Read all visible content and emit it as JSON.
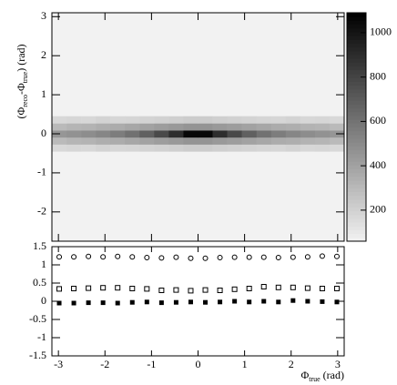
{
  "chart_data": [
    {
      "type": "heatmap",
      "y_label": [
        "(Φ",
        "reco",
        "-Φ",
        "true",
        ") (rad)"
      ],
      "x_edges": [
        -3.14,
        -2.826,
        -2.512,
        -2.198,
        -1.884,
        -1.57,
        -1.256,
        -0.942,
        -0.628,
        -0.314,
        0,
        0.314,
        0.628,
        0.942,
        1.256,
        1.57,
        1.884,
        2.198,
        2.512,
        2.826,
        3.14
      ],
      "y_edges": [
        -0.45,
        -0.27,
        -0.09,
        0.09,
        0.27,
        0.45
      ],
      "z": [
        [
          170,
          180,
          175,
          190,
          180,
          185,
          190,
          200,
          210,
          220,
          220,
          210,
          200,
          190,
          185,
          180,
          190,
          175,
          180,
          170
        ],
        [
          300,
          320,
          330,
          350,
          360,
          380,
          400,
          420,
          440,
          460,
          460,
          440,
          420,
          400,
          380,
          360,
          350,
          330,
          320,
          300
        ],
        [
          450,
          470,
          490,
          520,
          560,
          610,
          680,
          780,
          900,
          1060,
          1060,
          900,
          780,
          680,
          610,
          560,
          520,
          490,
          470,
          450
        ],
        [
          300,
          320,
          330,
          350,
          360,
          380,
          400,
          420,
          440,
          460,
          460,
          440,
          420,
          400,
          380,
          360,
          350,
          330,
          320,
          300
        ],
        [
          170,
          180,
          175,
          190,
          180,
          185,
          190,
          200,
          210,
          220,
          220,
          210,
          200,
          190,
          185,
          180,
          190,
          175,
          180,
          170
        ]
      ],
      "xlim": [
        -3.14,
        3.14
      ],
      "xticks": [
        -3,
        -2,
        -1,
        0,
        1,
        2,
        3
      ],
      "ylim": [
        -2.75,
        3.1
      ],
      "yticks": [
        -2,
        -1,
        0,
        1,
        2,
        3
      ],
      "zlim": [
        60,
        1090
      ],
      "zticks": [
        200,
        400,
        600,
        800,
        1000
      ],
      "colormap": "grayscale"
    },
    {
      "type": "scatter",
      "x_label": [
        "Φ",
        "true",
        " (rad)"
      ],
      "x": [
        -2.983,
        -2.669,
        -2.355,
        -2.041,
        -1.727,
        -1.413,
        -1.099,
        -0.785,
        -0.471,
        -0.157,
        0.157,
        0.471,
        0.785,
        1.099,
        1.413,
        1.727,
        2.041,
        2.355,
        2.669,
        2.983
      ],
      "series": [
        {
          "marker": "circle-open",
          "color": "#000000",
          "values": [
            1.22,
            1.22,
            1.23,
            1.22,
            1.23,
            1.22,
            1.2,
            1.19,
            1.21,
            1.18,
            1.18,
            1.2,
            1.21,
            1.21,
            1.21,
            1.2,
            1.21,
            1.22,
            1.24,
            1.23
          ]
        },
        {
          "marker": "square-open",
          "color": "#000000",
          "values": [
            0.34,
            0.35,
            0.36,
            0.37,
            0.37,
            0.35,
            0.34,
            0.3,
            0.31,
            0.29,
            0.31,
            0.3,
            0.33,
            0.35,
            0.4,
            0.38,
            0.38,
            0.36,
            0.35,
            0.35
          ]
        },
        {
          "marker": "square-filled",
          "color": "#000000",
          "values": [
            -0.05,
            -0.05,
            -0.04,
            -0.04,
            -0.05,
            -0.03,
            -0.02,
            -0.04,
            -0.03,
            -0.02,
            -0.03,
            -0.02,
            0,
            -0.02,
            0,
            -0.02,
            0.02,
            0,
            -0.01,
            -0.02
          ]
        }
      ],
      "xlim": [
        -3.14,
        3.14
      ],
      "xticks": [
        -3,
        -2,
        -1,
        0,
        1,
        2,
        3
      ],
      "ylim": [
        -1.5,
        1.5
      ],
      "yticks": [
        -1.5,
        -1,
        -0.5,
        0,
        0.5,
        1,
        1.5
      ]
    }
  ]
}
